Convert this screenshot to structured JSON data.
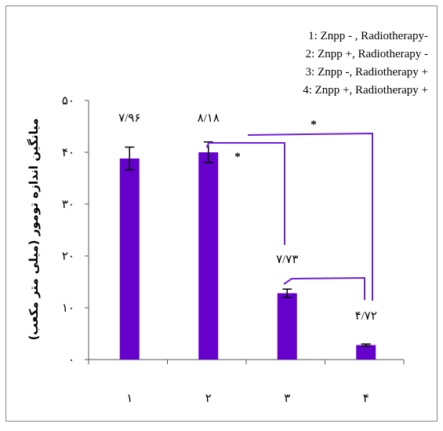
{
  "chart_data": {
    "type": "bar",
    "categories": [
      "۱",
      "۲",
      "۳",
      "۴"
    ],
    "values": [
      38.8,
      40.0,
      12.8,
      2.8
    ],
    "errors": [
      2.2,
      2.0,
      0.8,
      0.2
    ],
    "data_labels": [
      "۷/۹۶",
      "۸/۱۸",
      "۷/۷۳",
      "۴/۷۲"
    ],
    "ylabel": "میانگین اندازه تومور (میلی متر مکعب)",
    "ylim": [
      0,
      50
    ],
    "yticks": [
      0,
      10,
      20,
      30,
      40,
      50
    ],
    "ytick_labels": [
      "۰",
      "۱۰",
      "۲۰",
      "۳۰",
      "۴۰",
      "۵۰"
    ],
    "legend": [
      "1: Znpp - , Radiotherapy-",
      "2: Znpp +, Radiotherapy -",
      "3: Znpp -, Radiotherapy +",
      "4: Znpp +, Radiotherapy +"
    ],
    "legend_position": "top-right",
    "grid": false,
    "bar_color": "#6600cc",
    "significance": [
      {
        "from": 2,
        "to": 3,
        "label": "*"
      },
      {
        "from": 2,
        "to": 4,
        "label": "*"
      },
      {
        "from": 3,
        "to": 4,
        "label": ""
      }
    ]
  }
}
